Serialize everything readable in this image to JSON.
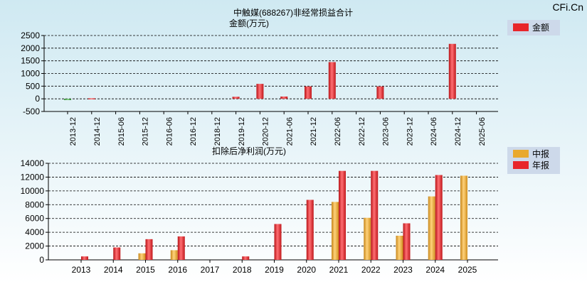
{
  "watermark": "CFi.Cn",
  "colors": {
    "bg_top": "#cfe9f2",
    "bg_bottom": "#ffffff",
    "bar_red": "#e8252a",
    "bar_gold": "#e9a92e",
    "bar_green": "#3aa63a",
    "legend_bg": "#cdd9ea"
  },
  "chart_data": [
    {
      "type": "bar",
      "title": "中触媒(688267)非经常损益合计",
      "ylabel": "金额(万元)",
      "categories": [
        "2013-12",
        "2014-12",
        "2015-06",
        "2015-12",
        "2016-06",
        "2016-12",
        "2018-12",
        "2019-12",
        "2020-12",
        "2021-06",
        "2021-12",
        "2022-06",
        "2022-12",
        "2023-06",
        "2023-12",
        "2024-06",
        "2024-12",
        "2025-06"
      ],
      "series": [
        {
          "name": "金额",
          "values": [
            -50,
            20,
            null,
            null,
            null,
            null,
            null,
            80,
            590,
            90,
            490,
            1450,
            null,
            490,
            null,
            null,
            2170,
            null
          ]
        }
      ],
      "yticks": [
        2500,
        2000,
        1500,
        1000,
        500,
        0,
        -500
      ],
      "ylim": [
        -500,
        2500
      ],
      "grid": true,
      "legend": "right"
    },
    {
      "type": "bar",
      "title": "扣除后净利润(万元)",
      "categories": [
        "2013",
        "2014",
        "2015",
        "2016",
        "2017",
        "2018",
        "2019",
        "2020",
        "2021",
        "2022",
        "2023",
        "2024",
        "2025"
      ],
      "series": [
        {
          "name": "中报",
          "values": [
            null,
            null,
            950,
            1400,
            null,
            null,
            null,
            null,
            8400,
            6100,
            3500,
            9200,
            12200
          ]
        },
        {
          "name": "年报",
          "values": [
            500,
            1800,
            3000,
            3400,
            null,
            500,
            5200,
            8700,
            12900,
            12900,
            5300,
            12300,
            null
          ]
        }
      ],
      "yticks": [
        14000,
        12000,
        10000,
        8000,
        6000,
        4000,
        2000,
        0
      ],
      "ylim": [
        0,
        14000
      ],
      "grid": true,
      "legend": "right"
    }
  ]
}
